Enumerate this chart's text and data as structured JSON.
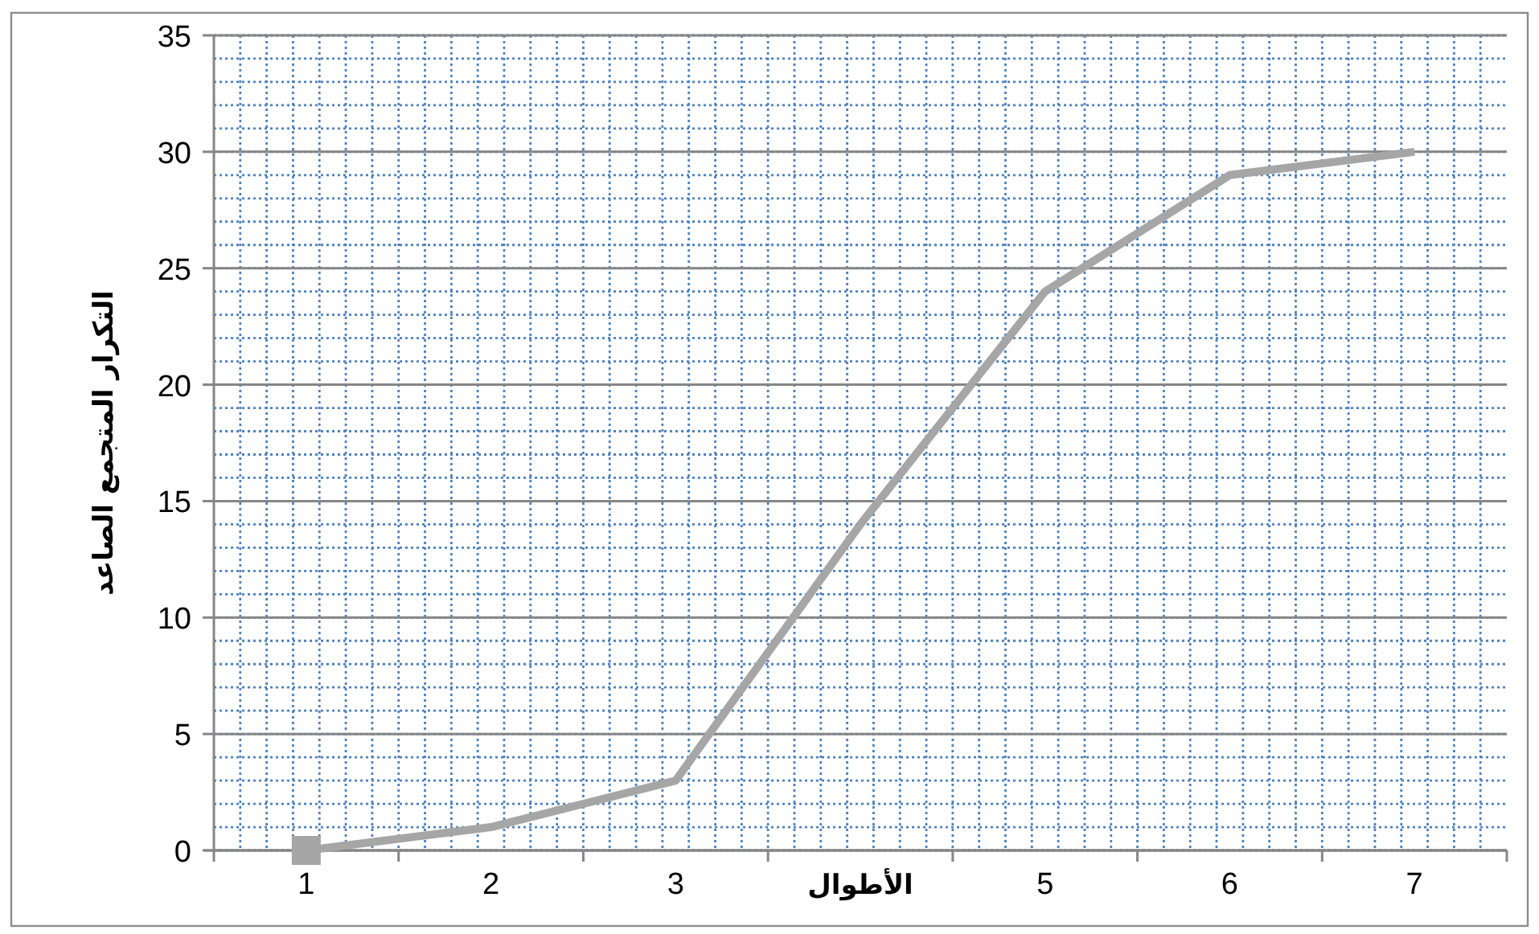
{
  "chart_data": {
    "type": "line",
    "xlabel": "الأطوال",
    "ylabel": "التكرار المتجمع الصاعد",
    "categories": [
      "1",
      "2",
      "3",
      null,
      "5",
      "6",
      "7"
    ],
    "series": [
      {
        "color": "#a6a6a6",
        "values": [
          0,
          1,
          3,
          14,
          24,
          29,
          30
        ],
        "marker": "none"
      },
      {
        "type": "scatter",
        "color": "#a6a6a6",
        "values": [
          0,
          null,
          null,
          null,
          null,
          null,
          null
        ],
        "marker": "square"
      }
    ],
    "ylim": [
      0,
      35
    ],
    "yticks": [
      0,
      5,
      10,
      15,
      20,
      25,
      30,
      35
    ],
    "grid": true
  }
}
